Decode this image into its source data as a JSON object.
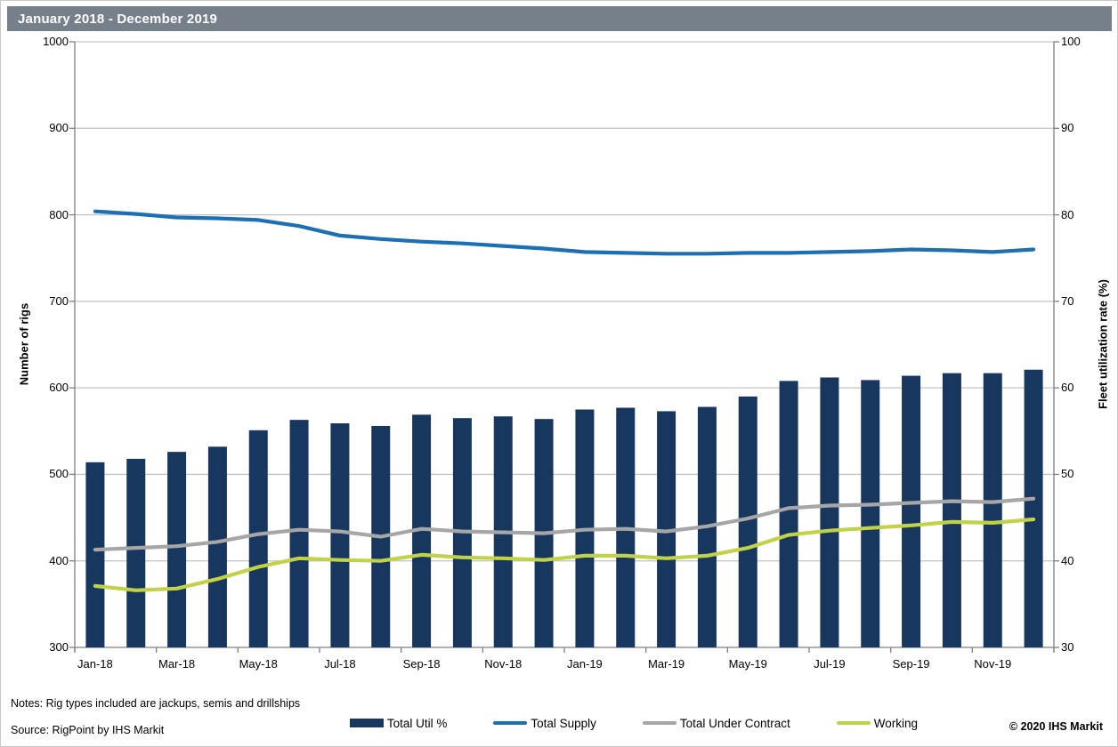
{
  "title": "January 2018 - December 2019",
  "header": {
    "background": "#76808B"
  },
  "footer": {
    "notes": "Notes: Rig types included are jackups, semis and drillships",
    "source": "Source: RigPoint by IHS Markit",
    "copyright": "© 2020 IHS Markit"
  },
  "chart_data": {
    "type": "combo-bar-line",
    "months": [
      "Jan-18",
      "Feb-18",
      "Mar-18",
      "Apr-18",
      "May-18",
      "Jun-18",
      "Jul-18",
      "Aug-18",
      "Sep-18",
      "Oct-18",
      "Nov-18",
      "Dec-18",
      "Jan-19",
      "Feb-19",
      "Mar-19",
      "Apr-19",
      "May-19",
      "Jun-19",
      "Jul-19",
      "Aug-19",
      "Sep-19",
      "Oct-19",
      "Nov-19",
      "Dec-19"
    ],
    "x_label_every": 2,
    "left_axis": {
      "label": "Number of rigs",
      "min": 300,
      "max": 1000,
      "step": 100
    },
    "right_axis": {
      "label": "Fleet utilization rate (%)",
      "min": 30,
      "max": 100,
      "step": 10
    },
    "grid": true,
    "legend_position": "bottom",
    "bar_series": {
      "name": "Total Util %",
      "axis": "right",
      "color": "#17375E",
      "values": [
        51.4,
        51.8,
        52.6,
        53.2,
        55.1,
        56.3,
        55.9,
        55.6,
        56.9,
        56.5,
        56.7,
        56.4,
        57.5,
        57.7,
        57.3,
        57.8,
        59.0,
        60.8,
        61.2,
        60.9,
        61.4,
        61.7,
        61.7,
        62.1
      ]
    },
    "line_series": [
      {
        "name": "Total Supply",
        "axis": "left",
        "color": "#1B70B5",
        "values": [
          804,
          801,
          797,
          796,
          794,
          787,
          776,
          772,
          769,
          767,
          764,
          761,
          757,
          756,
          755,
          755,
          756,
          756,
          757,
          758,
          760,
          759,
          757,
          760
        ]
      },
      {
        "name": "Total Under Contract",
        "axis": "left",
        "color": "#A6A6A6",
        "values": [
          413,
          415,
          417,
          422,
          431,
          436,
          434,
          428,
          437,
          434,
          433,
          432,
          436,
          437,
          434,
          440,
          449,
          461,
          464,
          465,
          467,
          469,
          468,
          472
        ]
      },
      {
        "name": "Working",
        "axis": "left",
        "color": "#C2D246",
        "values": [
          371,
          366,
          368,
          379,
          393,
          403,
          401,
          400,
          407,
          404,
          403,
          401,
          406,
          406,
          403,
          406,
          415,
          430,
          435,
          438,
          441,
          445,
          444,
          448
        ]
      }
    ],
    "colors": {
      "gridline": "#C3C3C3",
      "axis": "#7F7F7F"
    }
  }
}
